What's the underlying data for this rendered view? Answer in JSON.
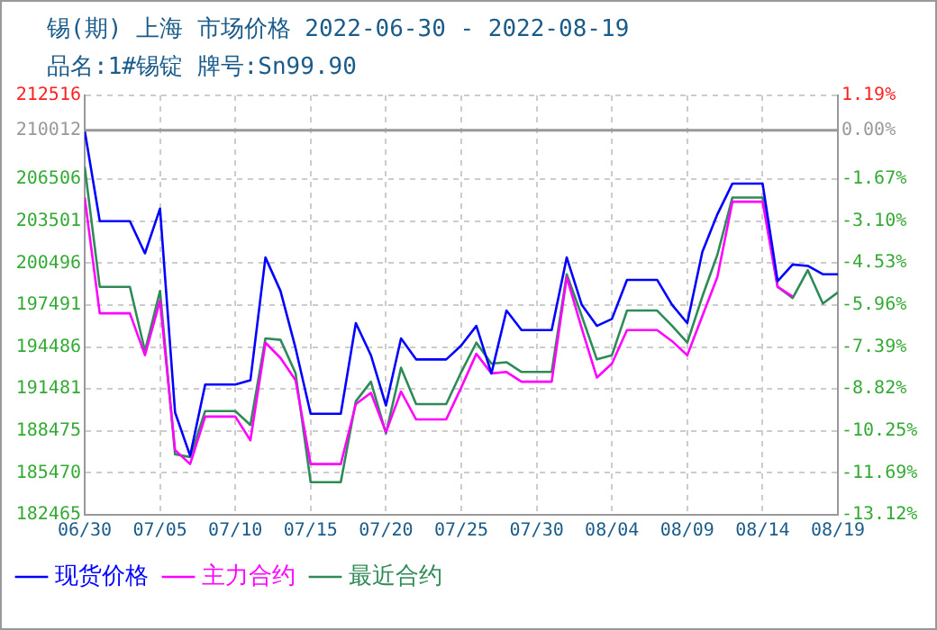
{
  "chart_data": {
    "type": "line",
    "title": "锡(期) 上海 市场价格 2022-06-30 - 2022-08-19",
    "subtitle": "品名:1#锡锭 牌号:Sn99.90",
    "x": [
      "2022-06-30",
      "2022-07-01",
      "2022-07-02",
      "2022-07-03",
      "2022-07-04",
      "2022-07-05",
      "2022-07-06",
      "2022-07-07",
      "2022-07-08",
      "2022-07-09",
      "2022-07-10",
      "2022-07-11",
      "2022-07-12",
      "2022-07-13",
      "2022-07-14",
      "2022-07-15",
      "2022-07-16",
      "2022-07-17",
      "2022-07-18",
      "2022-07-19",
      "2022-07-20",
      "2022-07-21",
      "2022-07-22",
      "2022-07-23",
      "2022-07-24",
      "2022-07-25",
      "2022-07-26",
      "2022-07-27",
      "2022-07-28",
      "2022-07-29",
      "2022-07-30",
      "2022-07-31",
      "2022-08-01",
      "2022-08-02",
      "2022-08-03",
      "2022-08-04",
      "2022-08-05",
      "2022-08-06",
      "2022-08-07",
      "2022-08-08",
      "2022-08-09",
      "2022-08-10",
      "2022-08-11",
      "2022-08-12",
      "2022-08-13",
      "2022-08-14",
      "2022-08-15",
      "2022-08-16",
      "2022-08-17",
      "2022-08-18",
      "2022-08-19"
    ],
    "series": [
      {
        "name": "现货价格",
        "color": "#0000ff",
        "values": [
          210000,
          203500,
          203500,
          203500,
          201200,
          204400,
          189800,
          186700,
          191800,
          191800,
          191800,
          192100,
          200900,
          198500,
          194400,
          189700,
          189700,
          189700,
          196200,
          193900,
          190300,
          195100,
          193600,
          193600,
          193600,
          194600,
          196000,
          192600,
          197100,
          195700,
          195700,
          195700,
          200900,
          197500,
          196000,
          196500,
          199300,
          199300,
          199300,
          197500,
          196200,
          201300,
          204000,
          206200,
          206200,
          206200,
          199200,
          200400,
          200300,
          199700,
          199700
        ]
      },
      {
        "name": "主力合约",
        "color": "#ff00ff",
        "values": [
          205200,
          196900,
          196900,
          196900,
          193900,
          197800,
          187100,
          186100,
          189500,
          189500,
          189500,
          187800,
          194800,
          193700,
          192100,
          186100,
          186100,
          186100,
          190400,
          191200,
          188400,
          191300,
          189300,
          189300,
          189300,
          191600,
          194000,
          192600,
          192700,
          192000,
          192000,
          192000,
          199500,
          195800,
          192300,
          193300,
          195700,
          195700,
          195700,
          194900,
          193900,
          196700,
          199500,
          204900,
          204900,
          204900,
          198800,
          198100,
          null,
          null,
          null
        ]
      },
      {
        "name": "最近合约",
        "color": "#2e8b57",
        "values": [
          207400,
          198800,
          198800,
          198800,
          194200,
          198500,
          186800,
          186600,
          189900,
          189900,
          189900,
          188900,
          195100,
          195000,
          192600,
          184800,
          184800,
          184800,
          190600,
          192000,
          188300,
          193000,
          190400,
          190400,
          190400,
          192700,
          194800,
          193300,
          193400,
          192700,
          192700,
          192700,
          199700,
          196700,
          193600,
          193900,
          197100,
          197100,
          197100,
          196000,
          194800,
          198100,
          201100,
          205200,
          205200,
          205200,
          198800,
          198000,
          200000,
          197600,
          198400
        ]
      }
    ],
    "xlim": [
      "2022-06-30",
      "2022-08-19"
    ],
    "xticks": [
      {
        "value": "2022-06-30",
        "label": "06/30"
      },
      {
        "value": "2022-07-05",
        "label": "07/05"
      },
      {
        "value": "2022-07-10",
        "label": "07/10"
      },
      {
        "value": "2022-07-15",
        "label": "07/15"
      },
      {
        "value": "2022-07-20",
        "label": "07/20"
      },
      {
        "value": "2022-07-25",
        "label": "07/25"
      },
      {
        "value": "2022-07-30",
        "label": "07/30"
      },
      {
        "value": "2022-08-04",
        "label": "08/04"
      },
      {
        "value": "2022-08-09",
        "label": "08/09"
      },
      {
        "value": "2022-08-14",
        "label": "08/14"
      },
      {
        "value": "2022-08-19",
        "label": "08/19"
      }
    ],
    "ylim": [
      182465,
      212516
    ],
    "yticks": [
      182465,
      185470,
      188475,
      191481,
      194486,
      197491,
      200496,
      203501,
      206506,
      210012,
      212516
    ],
    "y2lim": [
      -13.12,
      1.19
    ],
    "y2ticks": [
      {
        "value": -13.12,
        "label": "-13.12%"
      },
      {
        "value": -11.69,
        "label": "-11.69%"
      },
      {
        "value": -10.25,
        "label": "-10.25%"
      },
      {
        "value": -8.82,
        "label": "-8.82%"
      },
      {
        "value": -7.39,
        "label": "-7.39%"
      },
      {
        "value": -5.96,
        "label": "-5.96%"
      },
      {
        "value": -4.53,
        "label": "-4.53%"
      },
      {
        "value": -3.1,
        "label": "-3.10%"
      },
      {
        "value": -1.67,
        "label": "-1.67%"
      },
      {
        "value": 0,
        "label": "0.00%"
      },
      {
        "value": 1.19,
        "label": "1.19%"
      }
    ],
    "ref_lines": [
      {
        "axis": "y",
        "value": 210012,
        "color": "#999999"
      }
    ],
    "grid": true,
    "legend": "bottom",
    "marker": "none",
    "line_style": "solid"
  }
}
